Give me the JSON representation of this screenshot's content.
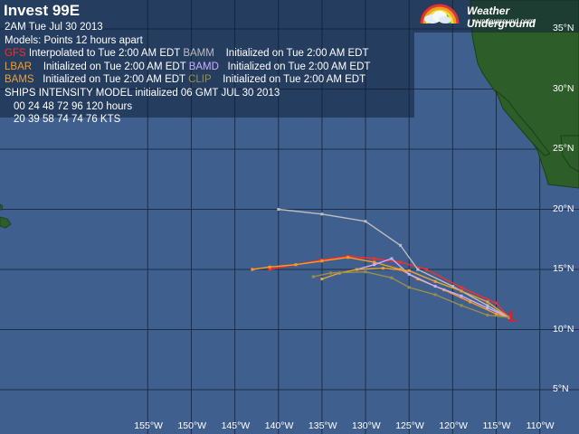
{
  "title": "Invest 99E",
  "info": {
    "datetime": "2AM  Tue Jul 30 2013",
    "models_line": "Models:  Points 12 hours apart",
    "gfs": "GFS",
    "gfs_text": "Interpolated to Tue 2:00 AM EDT",
    "bamm": "BAMM",
    "bamm_text": "Initialized on Tue 2:00 AM EDT",
    "lbar": "LBAR",
    "lbar_text": "Initialized on Tue 2:00 AM EDT",
    "bamd": "BAMD",
    "bamd_text": "Initialized on Tue 2:00 AM EDT",
    "bams": "BAMS",
    "bams_text": "Initialized on Tue 2:00 AM EDT",
    "clip": "CLIP",
    "clip_text": "Initialized on Tue 2:00 AM EDT",
    "ships_line": "SHIPS INTENSITY MODEL initialized 06 GMT JUL 30 2013",
    "hours_line": "00  24  48  72  96  120 hours",
    "kts_line": "20  39  58  74  74  76   KTS"
  },
  "brand": {
    "name": "Weather Underground",
    "url": "wunderground.com"
  },
  "lat_labels": [
    "35°N",
    "30°N",
    "25°N",
    "20°N",
    "15°N",
    "10°N",
    "5°N"
  ],
  "lon_labels": [
    "155°W",
    "150°W",
    "145°W",
    "140°W",
    "135°W",
    "130°W",
    "125°W",
    "120°W",
    "115°W",
    "110°W"
  ],
  "colors": {
    "ocean": "#3f5f8f",
    "land": "#2d5e2a",
    "grid": "#1e2c44",
    "gfs": "#ff2a2a",
    "bamm": "#bdbdbd",
    "lbar": "#ff9a1f",
    "bamd": "#c9b0ff",
    "bams": "#e8a23a",
    "clip": "#9a8f48",
    "storm_marker": "#e02020"
  },
  "storm_marker": {
    "symbol": "L",
    "lat": 11.0,
    "lon": -113.5
  },
  "tracks": [
    {
      "model": "GFS",
      "points": [
        [
          -113.5,
          11.0
        ],
        [
          -115.0,
          12.2
        ],
        [
          -119.0,
          13.5
        ],
        [
          -123.0,
          15.0
        ],
        [
          -126.0,
          15.6
        ],
        [
          -129.0,
          15.9
        ],
        [
          -132.0,
          16.1
        ],
        [
          -135.0,
          15.8
        ],
        [
          -138.0,
          15.4
        ],
        [
          -141.0,
          15.0
        ]
      ]
    },
    {
      "model": "BAMM",
      "points": [
        [
          -113.5,
          11.0
        ],
        [
          -116.0,
          12.0
        ],
        [
          -120.0,
          13.6
        ],
        [
          -124.0,
          15.0
        ],
        [
          -126.0,
          17.0
        ],
        [
          -130.0,
          19.0
        ],
        [
          -135.0,
          19.6
        ],
        [
          -140.0,
          20.0
        ]
      ]
    },
    {
      "model": "LBAR",
      "points": [
        [
          -113.5,
          11.0
        ],
        [
          -115.0,
          11.3
        ],
        [
          -118.0,
          12.3
        ],
        [
          -121.0,
          13.3
        ],
        [
          -124.0,
          14.2
        ],
        [
          -126.0,
          15.0
        ],
        [
          -129.0,
          15.6
        ],
        [
          -132.0,
          16.0
        ],
        [
          -135.0,
          15.7
        ],
        [
          -138.0,
          15.4
        ],
        [
          -141.0,
          15.2
        ],
        [
          -143.0,
          15.0
        ]
      ]
    },
    {
      "model": "BAMD",
      "points": [
        [
          -113.5,
          11.0
        ],
        [
          -116.0,
          11.8
        ],
        [
          -119.0,
          12.8
        ],
        [
          -122.0,
          13.6
        ],
        [
          -125.0,
          14.6
        ],
        [
          -127.0,
          15.9
        ],
        [
          -129.0,
          15.4
        ],
        [
          -131.0,
          15.0
        ]
      ]
    },
    {
      "model": "BAMS",
      "points": [
        [
          -113.5,
          11.0
        ],
        [
          -116.0,
          12.3
        ],
        [
          -119.0,
          13.2
        ],
        [
          -122.0,
          14.0
        ],
        [
          -125.0,
          14.9
        ],
        [
          -128.0,
          15.1
        ],
        [
          -131.0,
          15.0
        ],
        [
          -133.0,
          14.7
        ],
        [
          -135.0,
          14.2
        ]
      ]
    },
    {
      "model": "CLIP",
      "points": [
        [
          -113.5,
          11.0
        ],
        [
          -116.0,
          11.2
        ],
        [
          -119.0,
          12.0
        ],
        [
          -122.0,
          12.9
        ],
        [
          -125.0,
          13.5
        ],
        [
          -127.0,
          14.3
        ],
        [
          -130.0,
          14.8
        ],
        [
          -134.0,
          14.7
        ],
        [
          -136.0,
          14.4
        ]
      ]
    }
  ]
}
